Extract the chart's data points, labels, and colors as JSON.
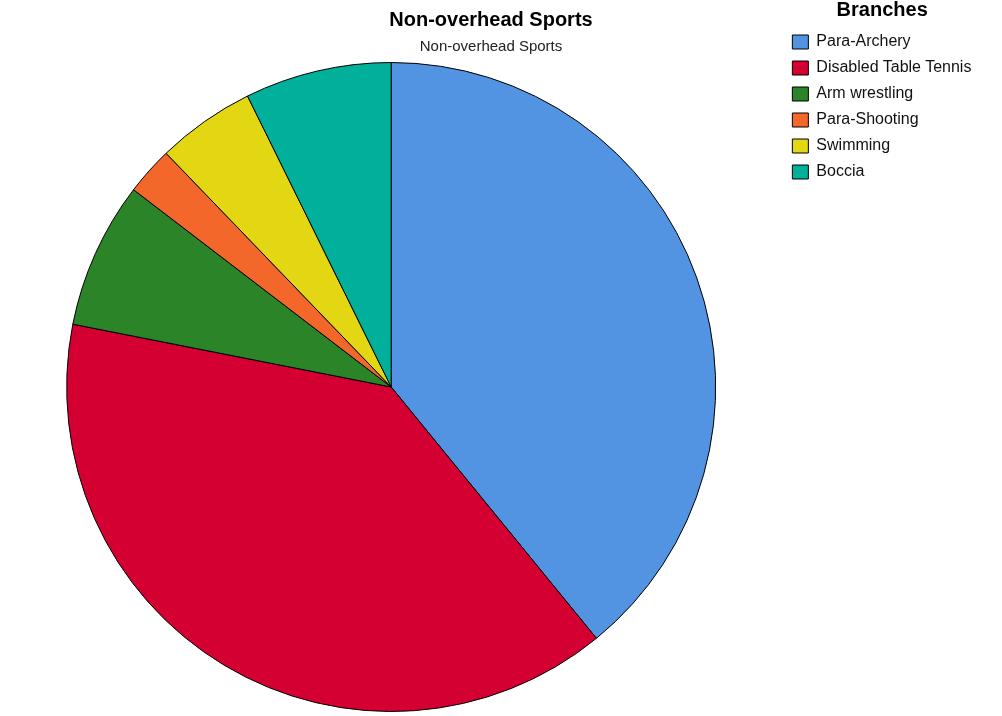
{
  "chart_data": {
    "type": "pie",
    "title": "Non-overhead Sports",
    "subtitle": "Non-overhead Sports",
    "legend_title": "Branches",
    "legend": "top right",
    "categories": [
      "Para-Archery",
      "Disabled Table Tennis",
      "Arm wrestling",
      "Para-Shooting",
      "Swimming",
      "Boccia"
    ],
    "values": [
      39.1,
      39.0,
      7.3,
      2.4,
      4.9,
      7.3
    ],
    "colors": [
      "#5294e2",
      "#d50032",
      "#2b8427",
      "#f4672a",
      "#e3d613",
      "#00b09b"
    ]
  }
}
